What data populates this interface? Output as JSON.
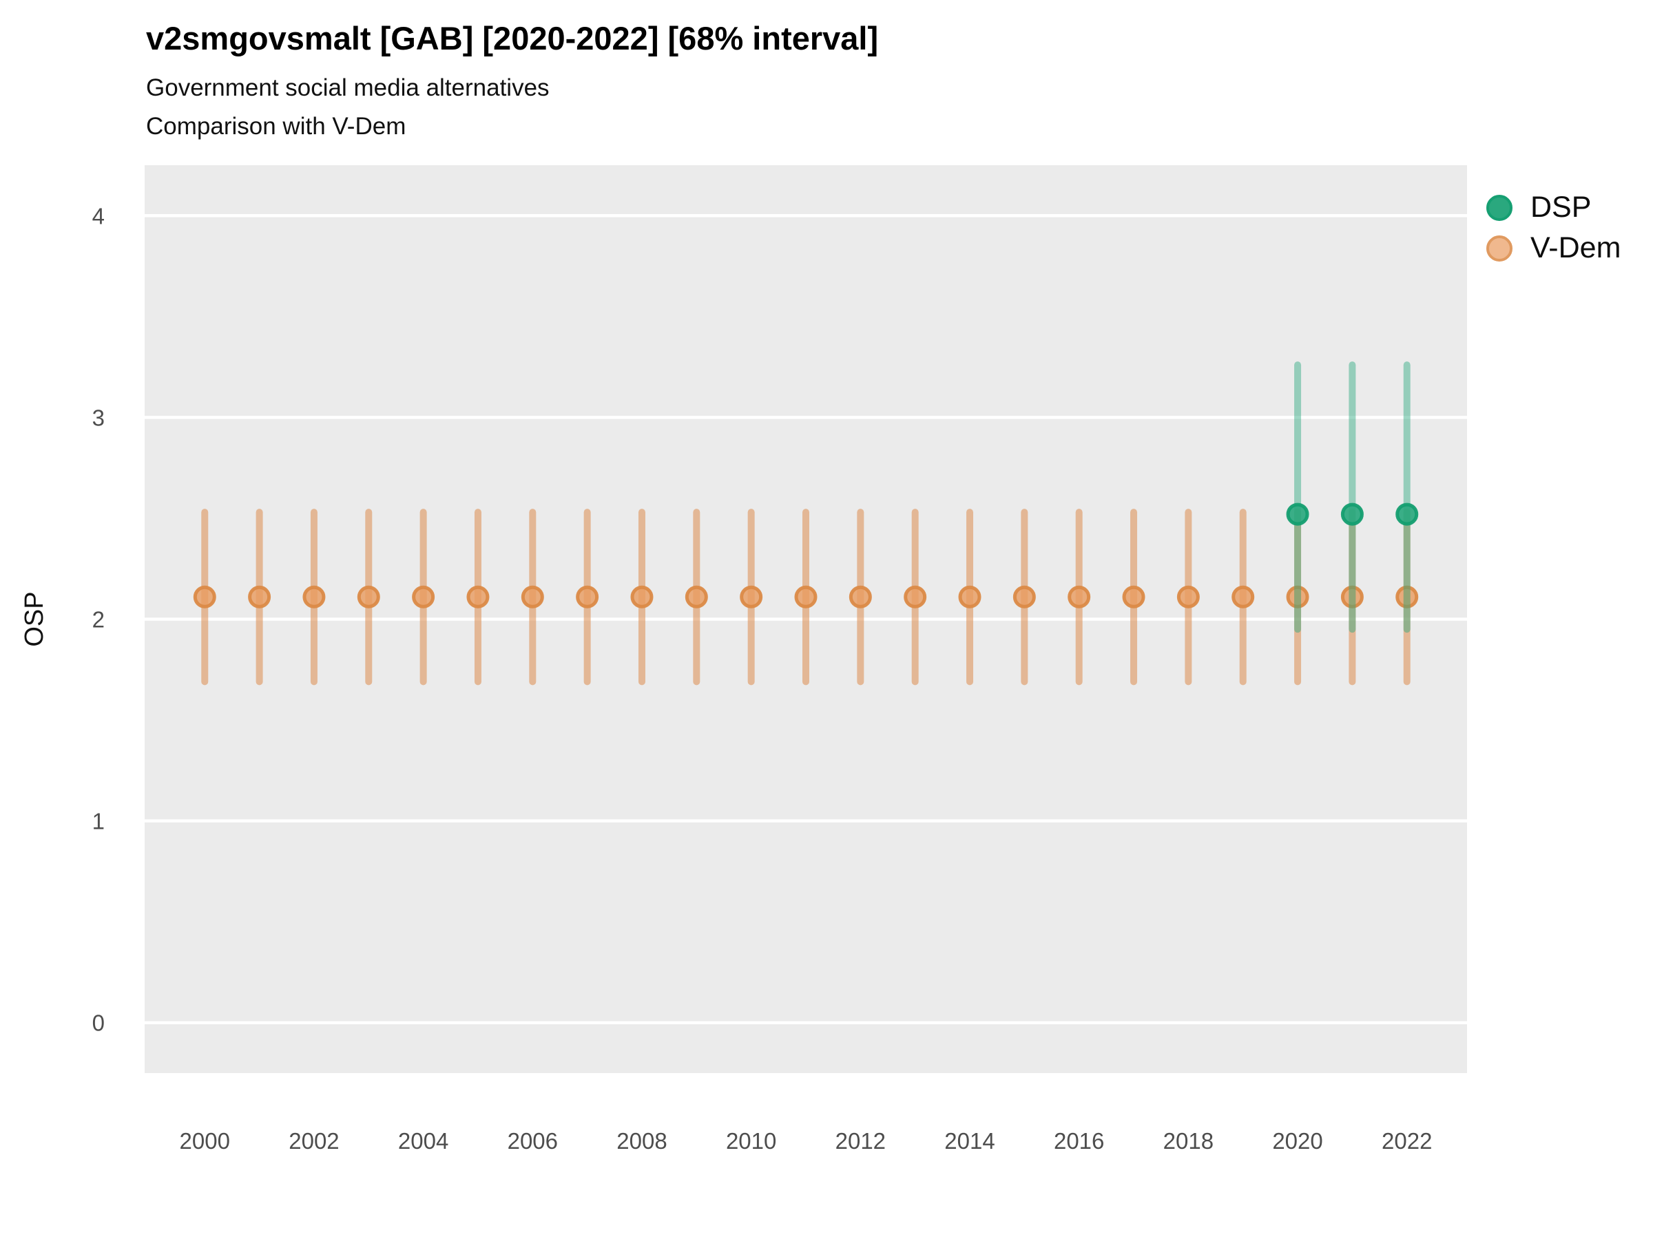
{
  "chart_data": {
    "type": "pointrange",
    "title": "v2smgovsmalt [GAB] [2020-2022] [68% interval]",
    "subtitle_line1": "Government social media alternatives",
    "subtitle_line2": "Comparison with V-Dem",
    "ylabel": "OSP",
    "xlabel": "",
    "ylim": [
      -0.25,
      4.25
    ],
    "y_ticks": [
      0,
      1,
      2,
      3,
      4
    ],
    "x_range": [
      2000,
      2022
    ],
    "x_ticks": [
      2000,
      2002,
      2004,
      2006,
      2008,
      2010,
      2012,
      2014,
      2016,
      2018,
      2020,
      2022
    ],
    "grid": "horizontal-white-on-gray",
    "panel_color": "#EBEBEB",
    "gridline_color": "#FFFFFF",
    "series": [
      {
        "name": "V-Dem",
        "point_color": "#E89B5F",
        "point_stroke": "#DB8A47",
        "line_color": "#DD8C4F",
        "line_alpha": 0.55,
        "point_alpha": 0.8,
        "points": [
          {
            "x": 2000,
            "y": 2.11,
            "ymin": 1.69,
            "ymax": 2.53
          },
          {
            "x": 2001,
            "y": 2.11,
            "ymin": 1.69,
            "ymax": 2.53
          },
          {
            "x": 2002,
            "y": 2.11,
            "ymin": 1.69,
            "ymax": 2.53
          },
          {
            "x": 2003,
            "y": 2.11,
            "ymin": 1.69,
            "ymax": 2.53
          },
          {
            "x": 2004,
            "y": 2.11,
            "ymin": 1.69,
            "ymax": 2.53
          },
          {
            "x": 2005,
            "y": 2.11,
            "ymin": 1.69,
            "ymax": 2.53
          },
          {
            "x": 2006,
            "y": 2.11,
            "ymin": 1.69,
            "ymax": 2.53
          },
          {
            "x": 2007,
            "y": 2.11,
            "ymin": 1.69,
            "ymax": 2.53
          },
          {
            "x": 2008,
            "y": 2.11,
            "ymin": 1.69,
            "ymax": 2.53
          },
          {
            "x": 2009,
            "y": 2.11,
            "ymin": 1.69,
            "ymax": 2.53
          },
          {
            "x": 2010,
            "y": 2.11,
            "ymin": 1.69,
            "ymax": 2.53
          },
          {
            "x": 2011,
            "y": 2.11,
            "ymin": 1.69,
            "ymax": 2.53
          },
          {
            "x": 2012,
            "y": 2.11,
            "ymin": 1.69,
            "ymax": 2.53
          },
          {
            "x": 2013,
            "y": 2.11,
            "ymin": 1.69,
            "ymax": 2.53
          },
          {
            "x": 2014,
            "y": 2.11,
            "ymin": 1.69,
            "ymax": 2.53
          },
          {
            "x": 2015,
            "y": 2.11,
            "ymin": 1.69,
            "ymax": 2.53
          },
          {
            "x": 2016,
            "y": 2.11,
            "ymin": 1.69,
            "ymax": 2.53
          },
          {
            "x": 2017,
            "y": 2.11,
            "ymin": 1.69,
            "ymax": 2.53
          },
          {
            "x": 2018,
            "y": 2.11,
            "ymin": 1.69,
            "ymax": 2.53
          },
          {
            "x": 2019,
            "y": 2.11,
            "ymin": 1.69,
            "ymax": 2.53
          },
          {
            "x": 2020,
            "y": 2.11,
            "ymin": 1.69,
            "ymax": 2.53
          },
          {
            "x": 2021,
            "y": 2.11,
            "ymin": 1.69,
            "ymax": 2.53
          },
          {
            "x": 2022,
            "y": 2.11,
            "ymin": 1.69,
            "ymax": 2.53
          }
        ]
      },
      {
        "name": "DSP",
        "point_color": "#2AA87E",
        "point_stroke": "#149E70",
        "line_color": "#2BA87E",
        "line_alpha": 0.45,
        "point_alpha": 0.92,
        "points": [
          {
            "x": 2020,
            "y": 2.52,
            "ymin": 1.95,
            "ymax": 3.26
          },
          {
            "x": 2021,
            "y": 2.52,
            "ymin": 1.95,
            "ymax": 3.26
          },
          {
            "x": 2022,
            "y": 2.52,
            "ymin": 1.95,
            "ymax": 3.26
          }
        ]
      }
    ],
    "legend": {
      "position": "right",
      "items": [
        {
          "label": "DSP",
          "color": "#2AA87E",
          "stroke": "#169F72"
        },
        {
          "label": "V-Dem",
          "color": "#F0B88E",
          "stroke": "#E09A60"
        }
      ]
    }
  }
}
